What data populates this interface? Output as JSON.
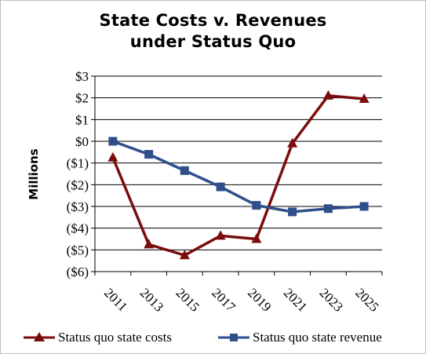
{
  "chart_data": {
    "type": "line",
    "title_lines": [
      "State Costs v. Revenues",
      "under Status Quo"
    ],
    "xlabel": "",
    "ylabel": "Millions",
    "x": [
      "2011",
      "2013",
      "2015",
      "2017",
      "2019",
      "2021",
      "2023",
      "2025"
    ],
    "ylim": [
      -6,
      3
    ],
    "yticks": [
      {
        "value": 3,
        "label": "$3"
      },
      {
        "value": 2,
        "label": "$2"
      },
      {
        "value": 1,
        "label": "$1"
      },
      {
        "value": 0,
        "label": "$0"
      },
      {
        "value": -1,
        "label": "($1)"
      },
      {
        "value": -2,
        "label": "($2)"
      },
      {
        "value": -3,
        "label": "($3)"
      },
      {
        "value": -4,
        "label": "($4)"
      },
      {
        "value": -5,
        "label": "($5)"
      },
      {
        "value": -6,
        "label": "($6)"
      }
    ],
    "grid": true,
    "legend_position": "bottom",
    "series": [
      {
        "name": "Status quo state costs",
        "color": "#7b0c0c",
        "marker": "triangle",
        "values": [
          -0.75,
          -4.75,
          -5.25,
          -4.35,
          -4.5,
          -0.1,
          2.1,
          1.95
        ]
      },
      {
        "name": "Status quo state revenue",
        "color": "#2e4f8a",
        "marker": "square",
        "values": [
          0,
          -0.6,
          -1.35,
          -2.1,
          -2.95,
          -3.25,
          -3.1,
          -3.0
        ]
      }
    ]
  }
}
